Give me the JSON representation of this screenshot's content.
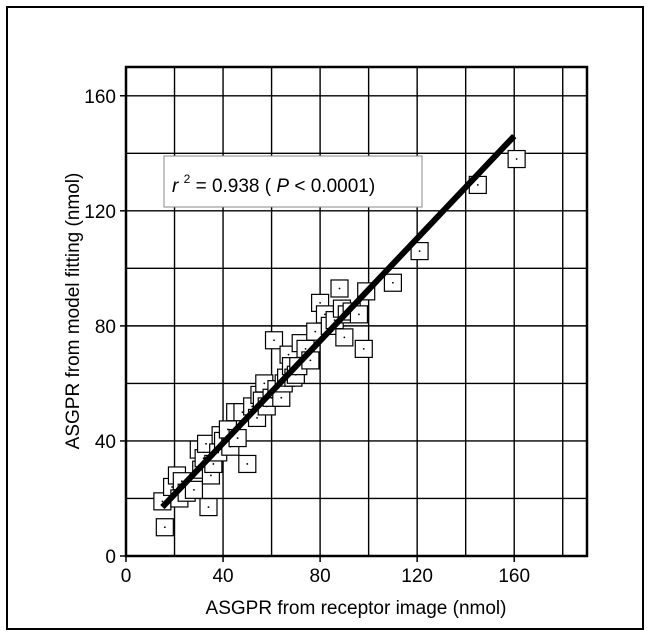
{
  "chart_data": {
    "type": "scatter",
    "xlabel": "ASGPR from receptor image (nmol)",
    "ylabel": "ASGPR from model fitting (nmol)",
    "xlim": [
      0,
      190
    ],
    "ylim": [
      0,
      170
    ],
    "xticks": [
      0,
      40,
      80,
      120,
      160
    ],
    "yticks": [
      0,
      40,
      80,
      120,
      160
    ],
    "grid_step": 20,
    "grid": true,
    "annotation": {
      "r_symbol": "r",
      "exponent": "2",
      "equals_value": " = 0.938  (",
      "p_symbol": "P",
      "p_value": " < 0.0001)"
    },
    "regression_line": {
      "x": [
        15,
        160
      ],
      "y": [
        17,
        146
      ]
    },
    "points": {
      "x": [
        15,
        16,
        19,
        21,
        22,
        23,
        25,
        28,
        30,
        31,
        32,
        33,
        34,
        35,
        36,
        38,
        39,
        40,
        42,
        43,
        45,
        46,
        48,
        50,
        52,
        54,
        55,
        56,
        57,
        58,
        60,
        61,
        62,
        64,
        65,
        66,
        67,
        68,
        69,
        70,
        71,
        72,
        74,
        76,
        78,
        80,
        82,
        84,
        86,
        88,
        89,
        90,
        91,
        93,
        96,
        98,
        99,
        110,
        121,
        145,
        161
      ],
      "y": [
        19,
        10,
        24,
        28,
        20,
        26,
        22,
        23,
        37,
        30,
        34,
        39,
        17,
        28,
        32,
        36,
        42,
        40,
        44,
        38,
        50,
        41,
        50,
        32,
        52,
        48,
        56,
        54,
        60,
        52,
        55,
        75,
        58,
        55,
        60,
        62,
        70,
        66,
        62,
        63,
        66,
        74,
        72,
        68,
        78,
        88,
        84,
        80,
        82,
        93,
        86,
        76,
        84,
        85,
        84,
        72,
        92,
        95,
        106,
        129,
        138
      ]
    }
  }
}
